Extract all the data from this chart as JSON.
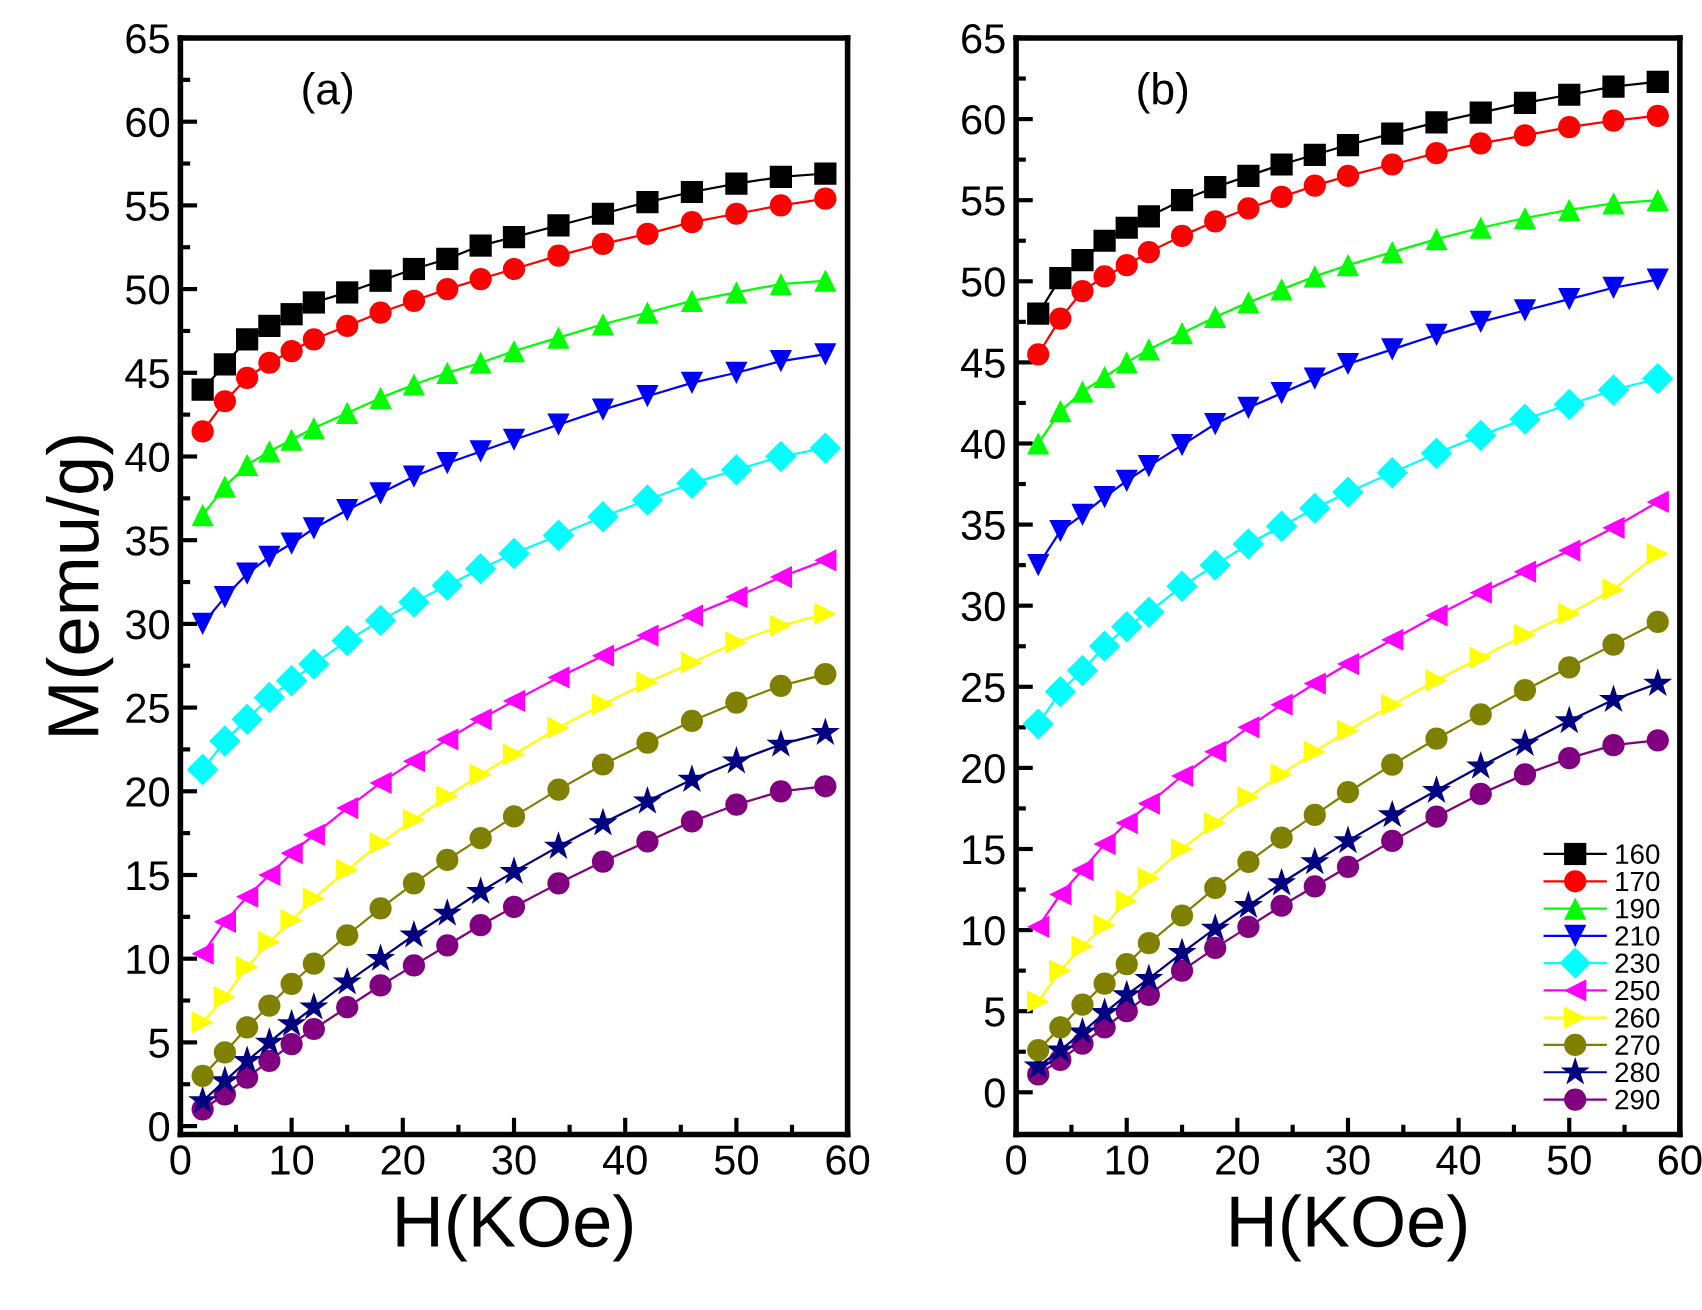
{
  "chart_data": [
    {
      "type": "line",
      "annotations": [
        "(a)"
      ],
      "xlabel": "H(KOe)",
      "ylabel": "M(emu/g)",
      "x": [
        2,
        4,
        6,
        8,
        10,
        12,
        15,
        18,
        21,
        24,
        27,
        30,
        34,
        38,
        42,
        46,
        50,
        54,
        58
      ],
      "xlim": [
        0,
        60
      ],
      "xticks": [
        0,
        10,
        20,
        30,
        40,
        50,
        60
      ],
      "ylim": [
        -0.5,
        65
      ],
      "yticks": [
        0,
        5,
        10,
        15,
        20,
        25,
        30,
        35,
        40,
        45,
        50,
        55,
        60,
        65
      ],
      "legend": false,
      "grid": false,
      "series": [
        {
          "color": "#000000",
          "marker": "square",
          "values": [
            44,
            45.5,
            47,
            47.8,
            48.5,
            49.2,
            49.8,
            50.5,
            51.2,
            51.8,
            52.6,
            53.1,
            53.8,
            54.5,
            55.2,
            55.8,
            56.3,
            56.7,
            56.9
          ]
        },
        {
          "color": "#ff0000",
          "marker": "circle",
          "values": [
            41.5,
            43.3,
            44.7,
            45.6,
            46.3,
            47,
            47.8,
            48.6,
            49.3,
            50,
            50.6,
            51.2,
            52,
            52.7,
            53.3,
            54,
            54.5,
            55,
            55.4
          ]
        },
        {
          "color": "#00ff00",
          "marker": "triangle",
          "values": [
            36.5,
            38.2,
            39.5,
            40.3,
            41,
            41.7,
            42.6,
            43.5,
            44.3,
            45,
            45.6,
            46.3,
            47.1,
            47.9,
            48.6,
            49.3,
            49.8,
            50.3,
            50.5
          ]
        },
        {
          "color": "#0000ff",
          "marker": "triangle-down",
          "values": [
            30,
            31.6,
            33,
            34,
            34.8,
            35.7,
            36.8,
            37.8,
            38.8,
            39.6,
            40.3,
            41,
            41.9,
            42.8,
            43.6,
            44.4,
            45,
            45.7,
            46.1
          ]
        },
        {
          "color": "#00ffff",
          "marker": "diamond",
          "values": [
            21.3,
            23,
            24.3,
            25.6,
            26.6,
            27.6,
            29,
            30.2,
            31.3,
            32.3,
            33.3,
            34.2,
            35.3,
            36.4,
            37.4,
            38.4,
            39.2,
            40,
            40.5
          ]
        },
        {
          "color": "#ff00ff",
          "marker": "triangle-left",
          "values": [
            10.3,
            12.2,
            13.7,
            15,
            16.3,
            17.4,
            19,
            20.5,
            21.8,
            23.1,
            24.3,
            25.4,
            26.8,
            28.1,
            29.3,
            30.5,
            31.6,
            32.8,
            33.8
          ]
        },
        {
          "color": "#ffff00",
          "marker": "triangle-right",
          "values": [
            6.2,
            7.7,
            9.5,
            11,
            12.3,
            13.6,
            15.3,
            16.9,
            18.3,
            19.7,
            21,
            22.2,
            23.8,
            25.2,
            26.5,
            27.7,
            28.9,
            29.9,
            30.6
          ]
        },
        {
          "color": "#808000",
          "marker": "circle",
          "values": [
            3,
            4.4,
            5.9,
            7.2,
            8.5,
            9.7,
            11.4,
            13,
            14.5,
            15.9,
            17.2,
            18.5,
            20.1,
            21.6,
            22.9,
            24.2,
            25.3,
            26.3,
            27
          ]
        },
        {
          "color": "#000080",
          "marker": "star",
          "values": [
            1.5,
            2.7,
            3.9,
            5,
            6.1,
            7.1,
            8.6,
            10,
            11.4,
            12.7,
            14,
            15.2,
            16.7,
            18.1,
            19.4,
            20.7,
            21.8,
            22.8,
            23.5
          ]
        },
        {
          "color": "#800080",
          "marker": "circle",
          "values": [
            1,
            1.9,
            2.9,
            3.9,
            4.9,
            5.8,
            7.1,
            8.4,
            9.6,
            10.8,
            12,
            13.1,
            14.5,
            15.8,
            17,
            18.2,
            19.2,
            20,
            20.3
          ]
        }
      ]
    },
    {
      "type": "line",
      "annotations": [
        "(b)"
      ],
      "xlabel": "H(KOe)",
      "x": [
        2,
        4,
        6,
        8,
        10,
        12,
        15,
        18,
        21,
        24,
        27,
        30,
        34,
        38,
        42,
        46,
        50,
        54,
        58
      ],
      "xlim": [
        0,
        60
      ],
      "xticks": [
        0,
        10,
        20,
        30,
        40,
        50,
        60
      ],
      "ylim": [
        -2.6,
        65
      ],
      "yticks": [
        0,
        5,
        10,
        15,
        20,
        25,
        30,
        35,
        40,
        45,
        50,
        55,
        60,
        65
      ],
      "legend": "bottom right",
      "grid": false,
      "series": [
        {
          "name": "160",
          "color": "#000000",
          "marker": "square",
          "values": [
            48,
            50.2,
            51.3,
            52.5,
            53.3,
            54,
            55,
            55.8,
            56.5,
            57.2,
            57.8,
            58.4,
            59.1,
            59.8,
            60.4,
            61,
            61.5,
            62,
            62.3
          ]
        },
        {
          "name": "170",
          "color": "#ff0000",
          "marker": "circle",
          "values": [
            45.5,
            47.7,
            49.4,
            50.3,
            51,
            51.8,
            52.8,
            53.7,
            54.5,
            55.2,
            55.9,
            56.5,
            57.2,
            57.9,
            58.5,
            59,
            59.5,
            59.9,
            60.2
          ]
        },
        {
          "name": "190",
          "color": "#00ff00",
          "marker": "triangle",
          "values": [
            40,
            42,
            43.2,
            44.1,
            45,
            45.8,
            46.8,
            47.8,
            48.7,
            49.5,
            50.3,
            51,
            51.8,
            52.6,
            53.3,
            53.9,
            54.4,
            54.8,
            55
          ]
        },
        {
          "name": "210",
          "color": "#0000ff",
          "marker": "triangle-down",
          "values": [
            32.5,
            34.6,
            35.6,
            36.7,
            37.7,
            38.6,
            39.9,
            41.2,
            42.2,
            43.1,
            44,
            44.9,
            45.8,
            46.7,
            47.5,
            48.2,
            48.9,
            49.6,
            50.1
          ]
        },
        {
          "name": "230",
          "color": "#00ffff",
          "marker": "diamond",
          "values": [
            22.7,
            24.7,
            26,
            27.5,
            28.7,
            29.6,
            31.2,
            32.5,
            33.8,
            34.9,
            36,
            37,
            38.2,
            39.4,
            40.5,
            41.5,
            42.4,
            43.3,
            44
          ]
        },
        {
          "name": "250",
          "color": "#ff00ff",
          "marker": "triangle-left",
          "values": [
            10.2,
            12.2,
            13.7,
            15.3,
            16.6,
            17.8,
            19.5,
            21,
            22.5,
            23.9,
            25.2,
            26.4,
            27.9,
            29.4,
            30.8,
            32.1,
            33.4,
            34.8,
            36.4
          ]
        },
        {
          "name": "260",
          "color": "#ffff00",
          "marker": "triangle-right",
          "values": [
            5.6,
            7.5,
            9,
            10.3,
            11.8,
            13.2,
            15,
            16.6,
            18.2,
            19.6,
            21,
            22.3,
            23.9,
            25.4,
            26.8,
            28.2,
            29.5,
            31,
            33.2
          ]
        },
        {
          "name": "270",
          "color": "#808000",
          "marker": "circle",
          "values": [
            2.6,
            4,
            5.4,
            6.7,
            7.9,
            9.2,
            10.9,
            12.6,
            14.2,
            15.7,
            17.1,
            18.5,
            20.2,
            21.8,
            23.3,
            24.8,
            26.2,
            27.6,
            29
          ]
        },
        {
          "name": "280",
          "color": "#000080",
          "marker": "star",
          "values": [
            1.6,
            2.6,
            3.7,
            4.9,
            6,
            7,
            8.6,
            10.1,
            11.5,
            12.9,
            14.2,
            15.5,
            17.1,
            18.6,
            20.1,
            21.5,
            22.9,
            24.2,
            25.2
          ]
        },
        {
          "name": "290",
          "color": "#800080",
          "marker": "circle",
          "values": [
            1.1,
            2,
            3,
            4,
            5,
            6,
            7.5,
            8.9,
            10.2,
            11.5,
            12.7,
            13.9,
            15.5,
            17,
            18.4,
            19.6,
            20.6,
            21.4,
            21.7
          ]
        }
      ]
    }
  ]
}
